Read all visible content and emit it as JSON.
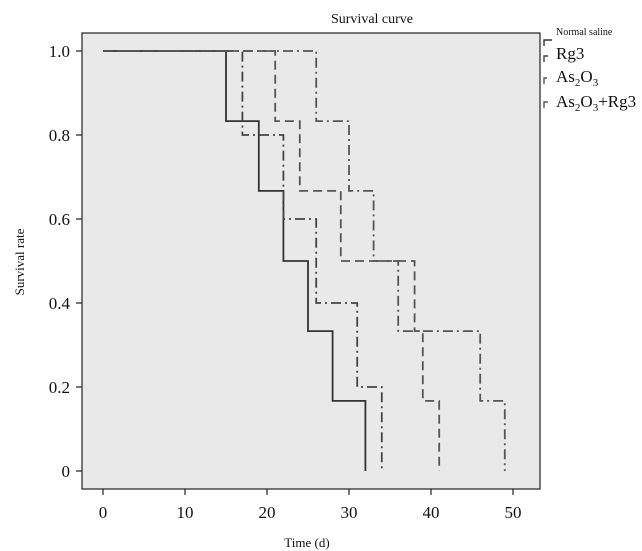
{
  "chart_data": {
    "type": "line",
    "title": "Survival curve",
    "xlabel": "Time (d)",
    "ylabel": "Survival rate",
    "xlim": [
      0,
      50
    ],
    "ylim": [
      0,
      1.0
    ],
    "x_ticks": [
      "0",
      "10",
      "20",
      "30",
      "40",
      "50"
    ],
    "y_ticks": [
      "0",
      "0.2",
      "0.4",
      "0.6",
      "0.8",
      "1.0"
    ],
    "grid": false,
    "background": "#e9e9e9",
    "legend_position": "right",
    "series": [
      {
        "name": "Normal saline",
        "dash": "solid",
        "color": "#333333",
        "steps": [
          [
            0,
            1.0
          ],
          [
            15,
            0.833
          ],
          [
            19,
            0.667
          ],
          [
            22,
            0.5
          ],
          [
            25,
            0.333
          ],
          [
            28,
            0.167
          ],
          [
            32,
            0
          ]
        ]
      },
      {
        "name": "Rg3",
        "dash": "dashdot",
        "color": "#444444",
        "steps": [
          [
            0,
            1.0
          ],
          [
            17,
            0.8
          ],
          [
            22,
            0.6
          ],
          [
            26,
            0.4
          ],
          [
            31,
            0.2
          ],
          [
            34,
            0
          ]
        ]
      },
      {
        "name": "As2O3",
        "dash": "dashed",
        "color": "#555555",
        "steps": [
          [
            0,
            1.0
          ],
          [
            21,
            0.833
          ],
          [
            24,
            0.667
          ],
          [
            29,
            0.5
          ],
          [
            38,
            0.333
          ],
          [
            39,
            0.167
          ],
          [
            41,
            0
          ]
        ]
      },
      {
        "name": "As2O3+Rg3",
        "dash": "dashdot",
        "color": "#555555",
        "steps": [
          [
            0,
            1.0
          ],
          [
            26,
            0.833
          ],
          [
            30,
            0.667
          ],
          [
            33,
            0.5
          ],
          [
            36,
            0.333
          ],
          [
            46,
            0.167
          ],
          [
            49,
            0
          ]
        ]
      }
    ]
  }
}
